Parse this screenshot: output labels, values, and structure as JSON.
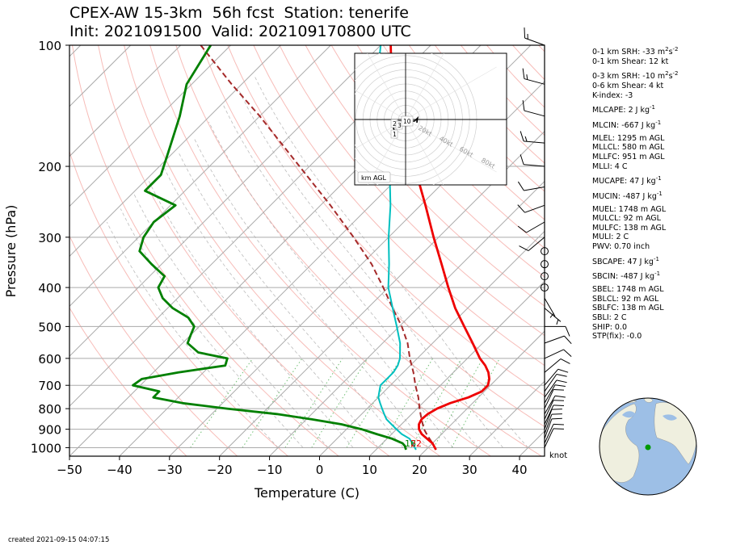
{
  "header": {
    "title_line1": "CPEX-AW 15-3km  56h fcst  Station: tenerife",
    "title_line2": "Init: 2021091500  Valid: 202109170800 UTC"
  },
  "footer": {
    "created": "created 2021-09-15 04:07:15"
  },
  "wind_units": "knot",
  "indices": [
    {
      "text": "0-1 km SRH: -33 m",
      "sup": "2",
      "tail": "s",
      "sup2": "-2"
    },
    {
      "text": "0-1 km Shear: 12 kt"
    },
    {
      "text": "0-3 km SRH: -10 m",
      "sup": "2",
      "tail": "s",
      "sup2": "-2",
      "gap": true
    },
    {
      "text": "0-6 km Shear: 4 kt"
    },
    {
      "text": "K-index: -3"
    },
    {
      "text": "MLCAPE: 2 J kg",
      "sup": "-1",
      "gap": true
    },
    {
      "text": "MLCIN: -667 J kg",
      "sup": "-1",
      "gap": true
    },
    {
      "text": "MLEL: 1295 m AGL",
      "gap": true
    },
    {
      "text": "MLLCL: 580 m AGL"
    },
    {
      "text": "MLLFC: 951 m AGL"
    },
    {
      "text": "MLLI: 4 C"
    },
    {
      "text": "MUCAPE: 47 J kg",
      "sup": "-1",
      "gap": true
    },
    {
      "text": "MUCIN: -487 J kg",
      "sup": "-1",
      "gap": true
    },
    {
      "text": "MUEL: 1748 m AGL",
      "gap": true
    },
    {
      "text": "MULCL: 92 m AGL"
    },
    {
      "text": "MULFC: 138 m AGL"
    },
    {
      "text": "MULI: 2 C"
    },
    {
      "text": "PWV: 0.70 inch"
    },
    {
      "text": "SBCAPE: 47 J kg",
      "sup": "-1",
      "gap": true
    },
    {
      "text": "SBCIN: -487 J kg",
      "sup": "-1",
      "gap": true
    },
    {
      "text": "SBEL: 1748 m AGL",
      "gap": true
    },
    {
      "text": "SBLCL: 92 m AGL"
    },
    {
      "text": "SBLFC: 138 m AGL"
    },
    {
      "text": "SBLI: 2 C"
    },
    {
      "text": "SHIP: 0.0"
    },
    {
      "text": "STP(fix): -0.0"
    }
  ],
  "hodograph": {
    "ring_labels": [
      "20kt",
      "40kt",
      "60kt",
      "80kt"
    ],
    "height_labels": [
      "2",
      "3",
      "1",
      "10"
    ],
    "legend": "km AGL"
  },
  "colors": {
    "temperature": "#ee0000",
    "dewpoint": "#008000",
    "wetbulb": "#00bfbf",
    "parcel": "#a52a2a",
    "isobar": "#aaaaaa",
    "isotherm": "#aaaaaa",
    "dry_adiabat": "#f4a09a",
    "moist_adiabat": "#a0a0a0",
    "mixing_ratio": "#4caf50",
    "globe_ocean": "#9dbfe6",
    "globe_land": "#efefdf",
    "station_marker": "#009900"
  },
  "chart_data": {
    "type": "line",
    "xlabel": "Temperature (C)",
    "ylabel": "Pressure (hPa)",
    "xlim": [
      -50,
      45
    ],
    "ylim": [
      1050,
      100
    ],
    "yscale": "log",
    "skew": true,
    "xticks": [
      -50,
      -40,
      -30,
      -20,
      -10,
      0,
      10,
      20,
      30,
      40
    ],
    "yticks": [
      100,
      200,
      300,
      400,
      500,
      600,
      700,
      800,
      900,
      1000
    ],
    "surface_labels": {
      "dewpoint": "16",
      "temperature": "22"
    },
    "series": [
      {
        "key": "temperature",
        "points": [
          [
            1012,
            22
          ],
          [
            975,
            20
          ],
          [
            950,
            18
          ],
          [
            925,
            16
          ],
          [
            900,
            14.5
          ],
          [
            875,
            13.5
          ],
          [
            850,
            13
          ],
          [
            825,
            13.2
          ],
          [
            800,
            14
          ],
          [
            775,
            15.5
          ],
          [
            750,
            18
          ],
          [
            725,
            19.5
          ],
          [
            700,
            19.5
          ],
          [
            675,
            18.5
          ],
          [
            650,
            17
          ],
          [
            625,
            15
          ],
          [
            600,
            12.5
          ],
          [
            550,
            8
          ],
          [
            500,
            3
          ],
          [
            450,
            -2.5
          ],
          [
            400,
            -8
          ],
          [
            350,
            -14
          ],
          [
            300,
            -21
          ],
          [
            250,
            -29
          ],
          [
            200,
            -39
          ],
          [
            175,
            -45.5
          ],
          [
            150,
            -52
          ],
          [
            125,
            -60
          ],
          [
            100,
            -68
          ]
        ]
      },
      {
        "key": "dewpoint",
        "points": [
          [
            1012,
            16
          ],
          [
            990,
            15
          ],
          [
            975,
            14
          ],
          [
            950,
            11
          ],
          [
            925,
            7
          ],
          [
            900,
            3
          ],
          [
            875,
            -2
          ],
          [
            850,
            -9
          ],
          [
            825,
            -17
          ],
          [
            800,
            -28
          ],
          [
            775,
            -38
          ],
          [
            750,
            -45
          ],
          [
            725,
            -45
          ],
          [
            700,
            -51.5
          ],
          [
            675,
            -51
          ],
          [
            650,
            -45
          ],
          [
            625,
            -37
          ],
          [
            600,
            -38
          ],
          [
            580,
            -45
          ],
          [
            550,
            -49
          ],
          [
            525,
            -50
          ],
          [
            500,
            -51
          ],
          [
            475,
            -54
          ],
          [
            450,
            -59
          ],
          [
            425,
            -63
          ],
          [
            400,
            -66
          ],
          [
            375,
            -67
          ],
          [
            350,
            -72
          ],
          [
            325,
            -77
          ],
          [
            300,
            -79
          ],
          [
            275,
            -80
          ],
          [
            250,
            -79
          ],
          [
            230,
            -88
          ],
          [
            210,
            -88
          ],
          [
            185,
            -91
          ],
          [
            150,
            -96
          ],
          [
            125,
            -101
          ],
          [
            100,
            -104
          ]
        ]
      },
      {
        "key": "wetbulb",
        "points": [
          [
            1012,
            18
          ],
          [
            975,
            16
          ],
          [
            950,
            14.5
          ],
          [
            925,
            12
          ],
          [
            900,
            10
          ],
          [
            875,
            8
          ],
          [
            850,
            6
          ],
          [
            825,
            4.5
          ],
          [
            800,
            3
          ],
          [
            775,
            1.5
          ],
          [
            750,
            0
          ],
          [
            725,
            -1
          ],
          [
            700,
            -2
          ],
          [
            675,
            -2
          ],
          [
            650,
            -2
          ],
          [
            625,
            -2.5
          ],
          [
            600,
            -3.5
          ],
          [
            550,
            -6.5
          ],
          [
            500,
            -10.5
          ],
          [
            450,
            -15
          ],
          [
            400,
            -20
          ],
          [
            350,
            -24.5
          ],
          [
            300,
            -30
          ],
          [
            250,
            -36
          ],
          [
            200,
            -44
          ],
          [
            175,
            -49
          ],
          [
            150,
            -55
          ],
          [
            125,
            -63
          ],
          [
            100,
            -70
          ]
        ]
      },
      {
        "key": "parcel",
        "points": [
          [
            1012,
            22
          ],
          [
            975,
            20
          ],
          [
            950,
            18.5
          ],
          [
            925,
            17
          ],
          [
            900,
            15.5
          ],
          [
            850,
            13
          ],
          [
            800,
            10.5
          ],
          [
            750,
            8
          ],
          [
            700,
            5
          ],
          [
            650,
            2
          ],
          [
            600,
            -1.5
          ],
          [
            550,
            -5
          ],
          [
            500,
            -9.5
          ],
          [
            450,
            -15
          ],
          [
            400,
            -21
          ],
          [
            350,
            -28
          ],
          [
            300,
            -37
          ],
          [
            250,
            -48
          ],
          [
            200,
            -62
          ],
          [
            150,
            -80
          ],
          [
            125,
            -92
          ],
          [
            100,
            -106
          ]
        ]
      }
    ],
    "wind_barbs": [
      {
        "p": 1000,
        "dir": 25,
        "spd": 12
      },
      {
        "p": 975,
        "dir": 25,
        "spd": 12
      },
      {
        "p": 950,
        "dir": 20,
        "spd": 12
      },
      {
        "p": 925,
        "dir": 20,
        "spd": 12
      },
      {
        "p": 900,
        "dir": 20,
        "spd": 12
      },
      {
        "p": 875,
        "dir": 25,
        "spd": 12
      },
      {
        "p": 850,
        "dir": 25,
        "spd": 12
      },
      {
        "p": 825,
        "dir": 30,
        "spd": 12
      },
      {
        "p": 800,
        "dir": 25,
        "spd": 12
      },
      {
        "p": 775,
        "dir": 30,
        "spd": 12
      },
      {
        "p": 750,
        "dir": 35,
        "spd": 12
      },
      {
        "p": 725,
        "dir": 35,
        "spd": 12
      },
      {
        "p": 700,
        "dir": 40,
        "spd": 12
      },
      {
        "p": 650,
        "dir": 50,
        "spd": 12
      },
      {
        "p": 600,
        "dir": 65,
        "spd": 12
      },
      {
        "p": 550,
        "dir": 70,
        "spd": 12
      },
      {
        "p": 500,
        "dir": 90,
        "spd": 10
      },
      {
        "p": 450,
        "dir": 130,
        "spd": 7
      },
      {
        "p": 425,
        "dir": 150,
        "spd": 7
      },
      {
        "p": 400,
        "dir": 0,
        "spd": 0
      },
      {
        "p": 375,
        "dir": 0,
        "spd": 0
      },
      {
        "p": 350,
        "dir": 0,
        "spd": 0
      },
      {
        "p": 325,
        "dir": 0,
        "spd": 0
      },
      {
        "p": 300,
        "dir": 230,
        "spd": 12
      },
      {
        "p": 275,
        "dir": 240,
        "spd": 12
      },
      {
        "p": 250,
        "dir": 250,
        "spd": 12
      },
      {
        "p": 225,
        "dir": 260,
        "spd": 10
      },
      {
        "p": 200,
        "dir": 275,
        "spd": 12
      },
      {
        "p": 175,
        "dir": 275,
        "spd": 15
      },
      {
        "p": 150,
        "dir": 285,
        "spd": 12
      },
      {
        "p": 125,
        "dir": 285,
        "spd": 15
      },
      {
        "p": 100,
        "dir": 290,
        "spd": 15
      }
    ]
  }
}
